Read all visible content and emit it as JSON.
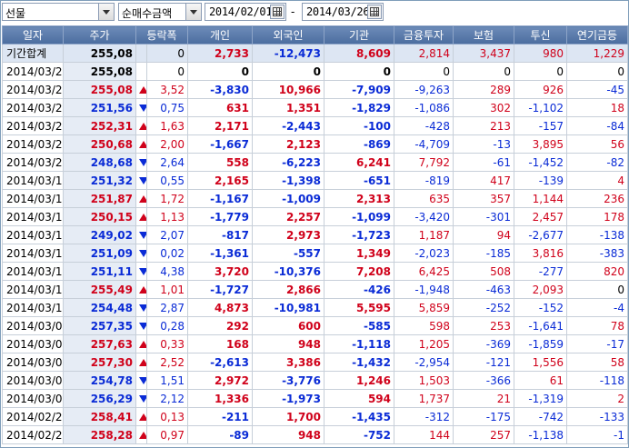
{
  "toolbar": {
    "market_select": "선물",
    "metric_select": "순매수금액",
    "start_date": "2014/02/01",
    "date_separator": "-",
    "end_date": "2014/03/26"
  },
  "colors": {
    "up": "#d0021b",
    "down": "#0a2bd6",
    "header": "#4b6d9f"
  },
  "columns": [
    "일자",
    "주가",
    "등락폭",
    "개인",
    "외국인",
    "기관",
    "금융투자",
    "보험",
    "투신",
    "연기금등"
  ],
  "rows": [
    {
      "date": "기간합계",
      "price": "255,08",
      "dir": "",
      "change": "0",
      "individual": "2,733",
      "foreign": "-12,473",
      "institution": "8,609",
      "fin": "2,814",
      "insurance": "3,437",
      "trust": "980",
      "pension": "1,229",
      "summary": true
    },
    {
      "date": "2014/03/27",
      "price": "255,08",
      "dir": "",
      "change": "0",
      "individual": "0",
      "foreign": "0",
      "institution": "0",
      "fin": "0",
      "insurance": "0",
      "trust": "0",
      "pension": "0"
    },
    {
      "date": "2014/03/26",
      "price": "255,08",
      "dir": "up",
      "change": "3,52",
      "individual": "-3,830",
      "foreign": "10,966",
      "institution": "-7,909",
      "fin": "-9,263",
      "insurance": "289",
      "trust": "926",
      "pension": "-45"
    },
    {
      "date": "2014/03/25",
      "price": "251,56",
      "dir": "down",
      "change": "0,75",
      "individual": "631",
      "foreign": "1,351",
      "institution": "-1,829",
      "fin": "-1,086",
      "insurance": "302",
      "trust": "-1,102",
      "pension": "18"
    },
    {
      "date": "2014/03/24",
      "price": "252,31",
      "dir": "up",
      "change": "1,63",
      "individual": "2,171",
      "foreign": "-2,443",
      "institution": "-100",
      "fin": "-428",
      "insurance": "213",
      "trust": "-157",
      "pension": "-84"
    },
    {
      "date": "2014/03/21",
      "price": "250,68",
      "dir": "up",
      "change": "2,00",
      "individual": "-1,667",
      "foreign": "2,123",
      "institution": "-869",
      "fin": "-4,709",
      "insurance": "-13",
      "trust": "3,895",
      "pension": "56"
    },
    {
      "date": "2014/03/20",
      "price": "248,68",
      "dir": "down",
      "change": "2,64",
      "individual": "558",
      "foreign": "-6,223",
      "institution": "6,241",
      "fin": "7,792",
      "insurance": "-61",
      "trust": "-1,452",
      "pension": "-82"
    },
    {
      "date": "2014/03/19",
      "price": "251,32",
      "dir": "down",
      "change": "0,55",
      "individual": "2,165",
      "foreign": "-1,398",
      "institution": "-651",
      "fin": "-819",
      "insurance": "417",
      "trust": "-139",
      "pension": "4"
    },
    {
      "date": "2014/03/18",
      "price": "251,87",
      "dir": "up",
      "change": "1,72",
      "individual": "-1,167",
      "foreign": "-1,009",
      "institution": "2,313",
      "fin": "635",
      "insurance": "357",
      "trust": "1,144",
      "pension": "236"
    },
    {
      "date": "2014/03/17",
      "price": "250,15",
      "dir": "up",
      "change": "1,13",
      "individual": "-1,779",
      "foreign": "2,257",
      "institution": "-1,099",
      "fin": "-3,420",
      "insurance": "-301",
      "trust": "2,457",
      "pension": "178"
    },
    {
      "date": "2014/03/14",
      "price": "249,02",
      "dir": "down",
      "change": "2,07",
      "individual": "-817",
      "foreign": "2,973",
      "institution": "-1,723",
      "fin": "1,187",
      "insurance": "94",
      "trust": "-2,677",
      "pension": "-138"
    },
    {
      "date": "2014/03/13",
      "price": "251,09",
      "dir": "down",
      "change": "0,02",
      "individual": "-1,361",
      "foreign": "-557",
      "institution": "1,349",
      "fin": "-2,023",
      "insurance": "-185",
      "trust": "3,816",
      "pension": "-383"
    },
    {
      "date": "2014/03/12",
      "price": "251,11",
      "dir": "down",
      "change": "4,38",
      "individual": "3,720",
      "foreign": "-10,376",
      "institution": "7,208",
      "fin": "6,425",
      "insurance": "508",
      "trust": "-277",
      "pension": "820"
    },
    {
      "date": "2014/03/11",
      "price": "255,49",
      "dir": "up",
      "change": "1,01",
      "individual": "-1,727",
      "foreign": "2,866",
      "institution": "-426",
      "fin": "-1,948",
      "insurance": "-463",
      "trust": "2,093",
      "pension": "0"
    },
    {
      "date": "2014/03/10",
      "price": "254,48",
      "dir": "down",
      "change": "2,87",
      "individual": "4,873",
      "foreign": "-10,981",
      "institution": "5,595",
      "fin": "5,859",
      "insurance": "-252",
      "trust": "-152",
      "pension": "-4"
    },
    {
      "date": "2014/03/07",
      "price": "257,35",
      "dir": "down",
      "change": "0,28",
      "individual": "292",
      "foreign": "600",
      "institution": "-585",
      "fin": "598",
      "insurance": "253",
      "trust": "-1,641",
      "pension": "78"
    },
    {
      "date": "2014/03/06",
      "price": "257,63",
      "dir": "up",
      "change": "0,33",
      "individual": "168",
      "foreign": "948",
      "institution": "-1,118",
      "fin": "1,205",
      "insurance": "-369",
      "trust": "-1,859",
      "pension": "-17"
    },
    {
      "date": "2014/03/05",
      "price": "257,30",
      "dir": "up",
      "change": "2,52",
      "individual": "-2,613",
      "foreign": "3,386",
      "institution": "-1,432",
      "fin": "-2,954",
      "insurance": "-121",
      "trust": "1,556",
      "pension": "58"
    },
    {
      "date": "2014/03/04",
      "price": "254,78",
      "dir": "down",
      "change": "1,51",
      "individual": "2,972",
      "foreign": "-3,776",
      "institution": "1,246",
      "fin": "1,503",
      "insurance": "-366",
      "trust": "61",
      "pension": "-118"
    },
    {
      "date": "2014/03/03",
      "price": "256,29",
      "dir": "down",
      "change": "2,12",
      "individual": "1,336",
      "foreign": "-1,973",
      "institution": "594",
      "fin": "1,737",
      "insurance": "21",
      "trust": "-1,319",
      "pension": "2"
    },
    {
      "date": "2014/02/28",
      "price": "258,41",
      "dir": "up",
      "change": "0,13",
      "individual": "-211",
      "foreign": "1,700",
      "institution": "-1,435",
      "fin": "-312",
      "insurance": "-175",
      "trust": "-742",
      "pension": "-133"
    },
    {
      "date": "2014/02/27",
      "price": "258,28",
      "dir": "up",
      "change": "0,97",
      "individual": "-89",
      "foreign": "948",
      "institution": "-752",
      "fin": "144",
      "insurance": "257",
      "trust": "-1,138",
      "pension": "-1"
    }
  ]
}
